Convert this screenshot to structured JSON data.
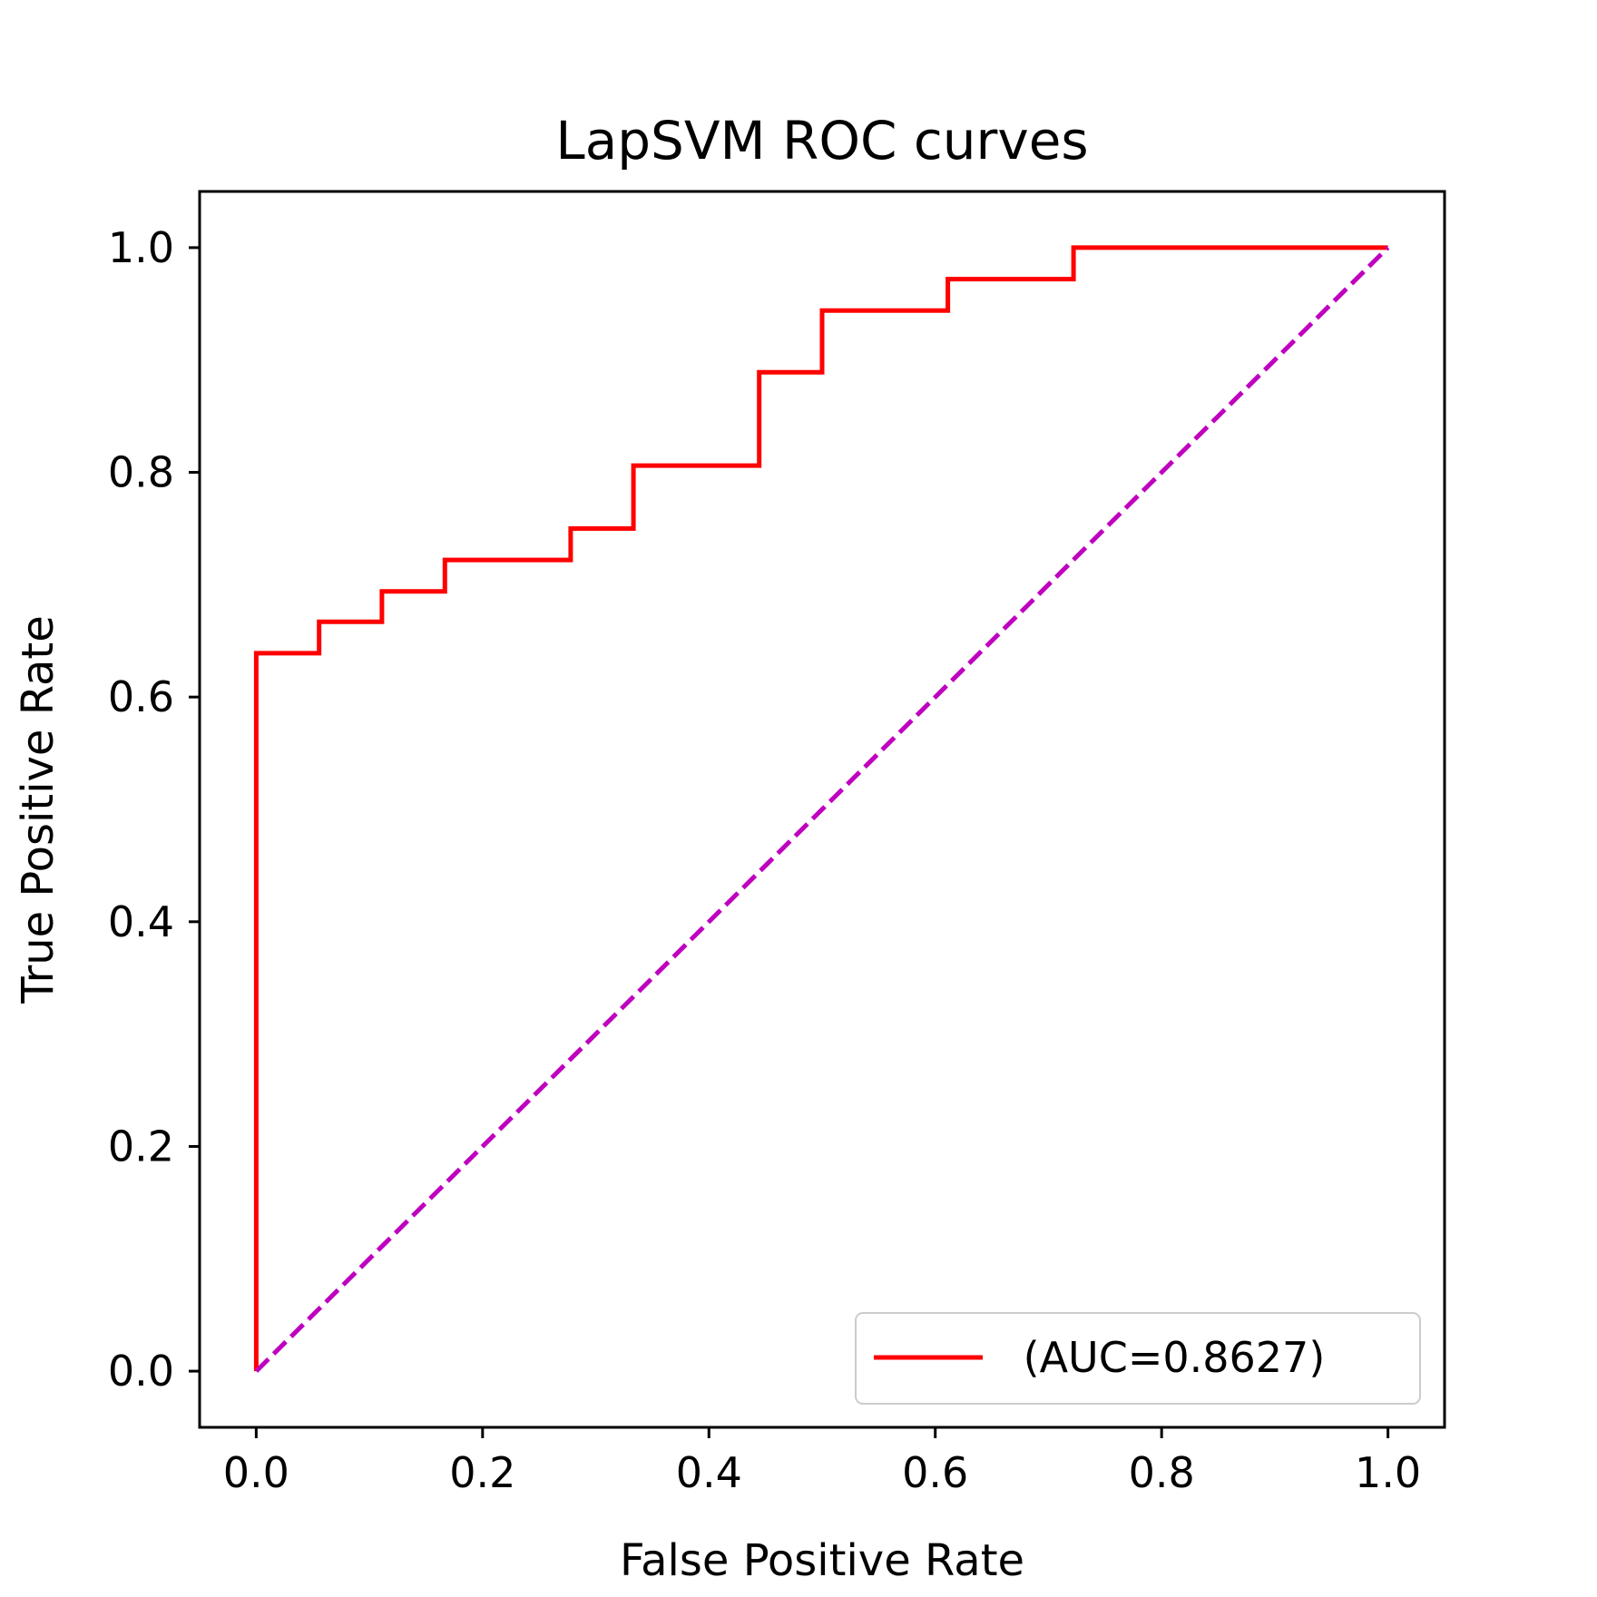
{
  "chart_data": {
    "type": "line",
    "title": "LapSVM ROC curves",
    "xlabel": "False Positive Rate",
    "ylabel": "True Positive Rate",
    "xlim": [
      -0.05,
      1.05
    ],
    "ylim": [
      -0.05,
      1.05
    ],
    "xticks": [
      0.0,
      0.2,
      0.4,
      0.6,
      0.8,
      1.0
    ],
    "xtick_labels": [
      "0.0",
      "0.2",
      "0.4",
      "0.6",
      "0.8",
      "1.0"
    ],
    "yticks": [
      0.0,
      0.2,
      0.4,
      0.6,
      0.8,
      1.0
    ],
    "ytick_labels": [
      "0.0",
      "0.2",
      "0.4",
      "0.6",
      "0.8",
      "1.0"
    ],
    "grid": false,
    "legend_position": "lower-right",
    "series": [
      {
        "name": " (AUC=0.8627)",
        "color": "#ff0000",
        "style": "step-solid",
        "x": [
          0.0,
          0.0,
          0.0556,
          0.0556,
          0.1111,
          0.1111,
          0.1667,
          0.1667,
          0.2778,
          0.2778,
          0.3333,
          0.3333,
          0.4444,
          0.4444,
          0.5,
          0.5,
          0.6111,
          0.6111,
          0.7222,
          0.7222,
          1.0
        ],
        "y": [
          0.0,
          0.639,
          0.639,
          0.667,
          0.667,
          0.694,
          0.694,
          0.722,
          0.722,
          0.75,
          0.75,
          0.806,
          0.806,
          0.889,
          0.889,
          0.944,
          0.944,
          0.972,
          0.972,
          1.0,
          1.0
        ]
      },
      {
        "color": "#bf00bf",
        "style": "dashed",
        "x": [
          0.0,
          1.0
        ],
        "y": [
          0.0,
          1.0
        ]
      }
    ]
  }
}
